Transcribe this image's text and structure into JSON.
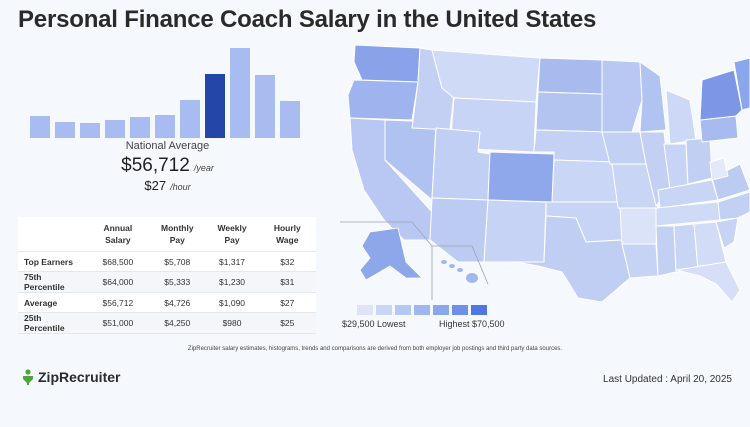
{
  "page": {
    "title": "Personal Finance Coach Salary in the United States"
  },
  "histogram": {
    "values": [
      20,
      15,
      14,
      16,
      19,
      21,
      35,
      58,
      82,
      57,
      34
    ],
    "highlight_index": 7,
    "max": 82,
    "colors": {
      "bar": "#a9bcf2",
      "highlight": "#2446a8"
    }
  },
  "national": {
    "label": "National Average",
    "annual": "$56,712",
    "annual_unit": "/year",
    "hourly": "$27",
    "hourly_unit": "/hour"
  },
  "table": {
    "headers": [
      "Annual Salary",
      "Monthly Pay",
      "Weekly Pay",
      "Hourly Wage"
    ],
    "rows": [
      {
        "label": "Top Earners",
        "values": [
          "$68,500",
          "$5,708",
          "$1,317",
          "$32"
        ]
      },
      {
        "label": "75th Percentile",
        "values": [
          "$64,000",
          "$5,333",
          "$1,230",
          "$31"
        ]
      },
      {
        "label": "Average",
        "values": [
          "$56,712",
          "$4,726",
          "$1,090",
          "$27"
        ]
      },
      {
        "label": "25th Percentile",
        "values": [
          "$51,000",
          "$4,250",
          "$980",
          "$25"
        ]
      }
    ]
  },
  "map_legend": {
    "low_label": "$29,500 Lowest",
    "high_label": "Highest $70,500",
    "swatches": [
      "#dde4f7",
      "#c9d6f5",
      "#b5c7f3",
      "#9fb6ef",
      "#8aa6ec",
      "#6f8fe8",
      "#4f77e2"
    ]
  },
  "footnote": "ZipRecruiter salary estimates, histograms, trends and comparisons are derived from both employer job postings and third party data sources.",
  "brand": {
    "name": "ZipRecruiter",
    "icon": "zip-recruiter-logo-icon"
  },
  "last_updated": "Last Updated : April 20, 2025"
}
